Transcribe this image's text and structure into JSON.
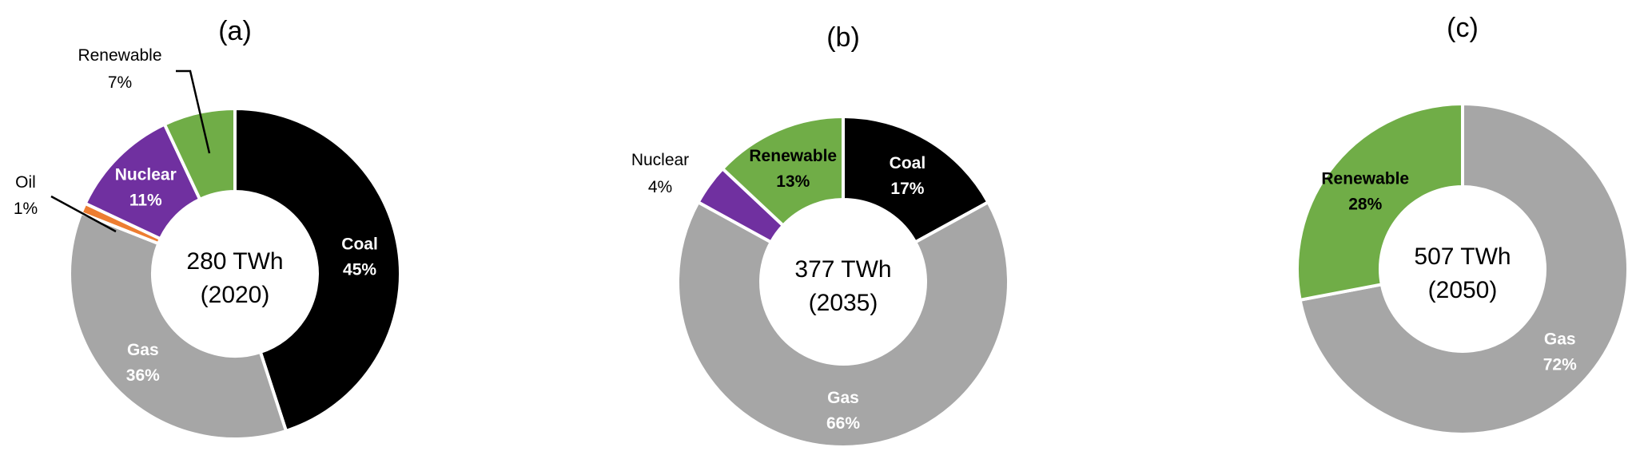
{
  "colors": {
    "Coal": "#000000",
    "Gas": "#a6a6a6",
    "Oil": "#ed7d31",
    "Nuclear": "#7030a0",
    "Renewable": "#70ad47"
  },
  "chart_data": [
    {
      "type": "pie",
      "subtype": "donut",
      "title": "(a)",
      "center_line1": "280 TWh",
      "center_line2": "(2020)",
      "slices": [
        {
          "name": "Coal",
          "value": 45,
          "label_name": "Coal",
          "label_pct": "45%",
          "label_placement": "inside",
          "label_color": "#ffffff"
        },
        {
          "name": "Gas",
          "value": 36,
          "label_name": "Gas",
          "label_pct": "36%",
          "label_placement": "inside",
          "label_color": "#ffffff"
        },
        {
          "name": "Oil",
          "value": 1,
          "label_name": "Oil",
          "label_pct": "1%",
          "label_placement": "outside-left",
          "label_color": "#000000"
        },
        {
          "name": "Nuclear",
          "value": 11,
          "label_name": "Nuclear",
          "label_pct": "11%",
          "label_placement": "inside",
          "label_color": "#ffffff"
        },
        {
          "name": "Renewable",
          "value": 7,
          "label_name": "Renewable",
          "label_pct": "7%",
          "label_placement": "outside-top",
          "label_color": "#000000"
        }
      ]
    },
    {
      "type": "pie",
      "subtype": "donut",
      "title": "(b)",
      "center_line1": "377 TWh",
      "center_line2": "(2035)",
      "slices": [
        {
          "name": "Coal",
          "value": 17,
          "label_name": "Coal",
          "label_pct": "17%",
          "label_placement": "inside",
          "label_color": "#ffffff"
        },
        {
          "name": "Gas",
          "value": 66,
          "label_name": "Gas",
          "label_pct": "66%",
          "label_placement": "inside",
          "label_color": "#ffffff"
        },
        {
          "name": "Nuclear",
          "value": 4,
          "label_name": "Nuclear",
          "label_pct": "4%",
          "label_placement": "outside-left",
          "label_color": "#000000"
        },
        {
          "name": "Renewable",
          "value": 13,
          "label_name": "Renewable",
          "label_pct": "13%",
          "label_placement": "inside",
          "label_color": "#000000"
        }
      ]
    },
    {
      "type": "pie",
      "subtype": "donut",
      "title": "(c)",
      "center_line1": "507 TWh",
      "center_line2": "(2050)",
      "slices": [
        {
          "name": "Gas",
          "value": 72,
          "label_name": "Gas",
          "label_pct": "72%",
          "label_placement": "inside",
          "label_color": "#ffffff"
        },
        {
          "name": "Renewable",
          "value": 28,
          "label_name": "Renewable",
          "label_pct": "28%",
          "label_placement": "inside",
          "label_color": "#000000"
        }
      ]
    }
  ]
}
